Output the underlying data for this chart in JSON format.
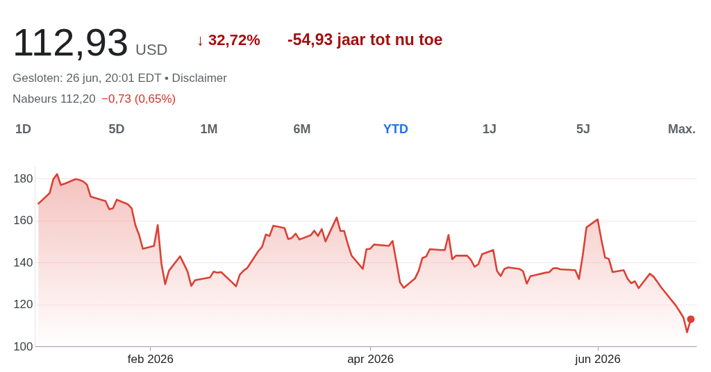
{
  "chart_data": {
    "type": "area",
    "x": [
      "2026-01-02",
      "2026-01-05",
      "2026-01-06",
      "2026-01-07",
      "2026-01-08",
      "2026-01-09",
      "2026-01-12",
      "2026-01-13",
      "2026-01-14",
      "2026-01-15",
      "2026-01-16",
      "2026-01-20",
      "2026-01-21",
      "2026-01-22",
      "2026-01-23",
      "2026-01-26",
      "2026-01-27",
      "2026-01-28",
      "2026-01-29",
      "2026-01-30",
      "2026-02-02",
      "2026-02-03",
      "2026-02-04",
      "2026-02-05",
      "2026-02-06",
      "2026-02-09",
      "2026-02-10",
      "2026-02-11",
      "2026-02-12",
      "2026-02-13",
      "2026-02-17",
      "2026-02-18",
      "2026-02-19",
      "2026-02-20",
      "2026-02-23",
      "2026-02-24",
      "2026-02-25",
      "2026-02-26",
      "2026-02-27",
      "2026-03-02",
      "2026-03-03",
      "2026-03-04",
      "2026-03-05",
      "2026-03-06",
      "2026-03-09",
      "2026-03-10",
      "2026-03-11",
      "2026-03-12",
      "2026-03-13",
      "2026-03-16",
      "2026-03-17",
      "2026-03-18",
      "2026-03-19",
      "2026-03-20",
      "2026-03-23",
      "2026-03-24",
      "2026-03-25",
      "2026-03-26",
      "2026-03-27",
      "2026-03-30",
      "2026-03-31",
      "2026-04-01",
      "2026-04-02",
      "2026-04-06",
      "2026-04-07",
      "2026-04-08",
      "2026-04-09",
      "2026-04-10",
      "2026-04-13",
      "2026-04-14",
      "2026-04-15",
      "2026-04-16",
      "2026-04-17",
      "2026-04-20",
      "2026-04-21",
      "2026-04-22",
      "2026-04-23",
      "2026-04-24",
      "2026-04-27",
      "2026-04-28",
      "2026-04-29",
      "2026-04-30",
      "2026-05-01",
      "2026-05-04",
      "2026-05-05",
      "2026-05-06",
      "2026-05-07",
      "2026-05-08",
      "2026-05-11",
      "2026-05-12",
      "2026-05-13",
      "2026-05-14",
      "2026-05-15",
      "2026-05-18",
      "2026-05-19",
      "2026-05-20",
      "2026-05-21",
      "2026-05-22",
      "2026-05-26",
      "2026-05-27",
      "2026-05-28",
      "2026-05-29",
      "2026-06-01",
      "2026-06-02",
      "2026-06-03",
      "2026-06-04",
      "2026-06-05",
      "2026-06-08",
      "2026-06-09",
      "2026-06-10",
      "2026-06-11",
      "2026-06-12",
      "2026-06-15",
      "2026-06-16",
      "2026-06-17",
      "2026-06-18",
      "2026-06-22",
      "2026-06-23",
      "2026-06-24",
      "2026-06-25",
      "2026-06-26"
    ],
    "series": [
      {
        "color": "#dc4034",
        "values": [
          168.0,
          173.0,
          179.7,
          182.1,
          176.9,
          177.5,
          179.7,
          179.3,
          178.6,
          177.1,
          171.4,
          169.2,
          165.3,
          165.8,
          169.9,
          167.7,
          165.8,
          157.8,
          153.1,
          146.5,
          147.9,
          157.8,
          139.3,
          129.6,
          136.0,
          142.9,
          139.3,
          135.6,
          128.8,
          131.5,
          132.8,
          135.6,
          135.1,
          135.4,
          130.4,
          128.6,
          134.1,
          136.0,
          137.3,
          145.4,
          147.4,
          153.3,
          152.6,
          157.5,
          156.4,
          151.1,
          151.7,
          153.7,
          150.9,
          152.9,
          155.1,
          152.6,
          155.9,
          150.0,
          161.4,
          155.0,
          155.0,
          148.7,
          143.2,
          136.9,
          146.3,
          146.5,
          148.5,
          147.9,
          150.2,
          140.4,
          130.4,
          127.9,
          132.3,
          136.0,
          142.1,
          142.8,
          146.3,
          145.9,
          145.9,
          153.1,
          141.5,
          143.2,
          143.2,
          141.2,
          137.9,
          139.1,
          143.9,
          145.9,
          136.0,
          133.5,
          136.9,
          137.6,
          136.9,
          135.8,
          129.9,
          133.5,
          133.8,
          135.1,
          135.3,
          137.1,
          137.3,
          136.7,
          136.3,
          132.1,
          143.2,
          156.7,
          160.5,
          150.9,
          142.3,
          141.7,
          135.4,
          136.3,
          132.3,
          130.1,
          131.0,
          127.7,
          134.6,
          133.2,
          130.8,
          128.2,
          119.4,
          116.6,
          113.8,
          106.7,
          112.93
        ]
      },
      {
        "type": "scatter",
        "color": "#dc4034",
        "marker": "circle",
        "x": [
          "2026-06-26"
        ],
        "values": [
          112.93
        ]
      }
    ],
    "xlim": [
      "2026-01-01",
      "2026-06-27T12:00"
    ],
    "xticks": [
      {
        "value": "2026-02-01",
        "label": "feb 2026"
      },
      {
        "value": "2026-04-01",
        "label": "apr 2026"
      },
      {
        "value": "2026-06-01",
        "label": "jun 2026"
      }
    ],
    "ylim": [
      100,
      186
    ],
    "yticks": [
      100,
      120,
      140,
      160,
      180
    ],
    "grid": "y",
    "annotations": [
      "112,93",
      "USD",
      "↓ 32,72%",
      "-54,93 jaar tot nu toe",
      "Gesloten: 26 jun, 20:01 EDT • Disclaimer",
      "Nabeurs 112,20",
      "−0,73 (0,65%)",
      "1D",
      "5D",
      "1M",
      "6M",
      "YTD",
      "1J",
      "5J",
      "Max."
    ]
  }
}
